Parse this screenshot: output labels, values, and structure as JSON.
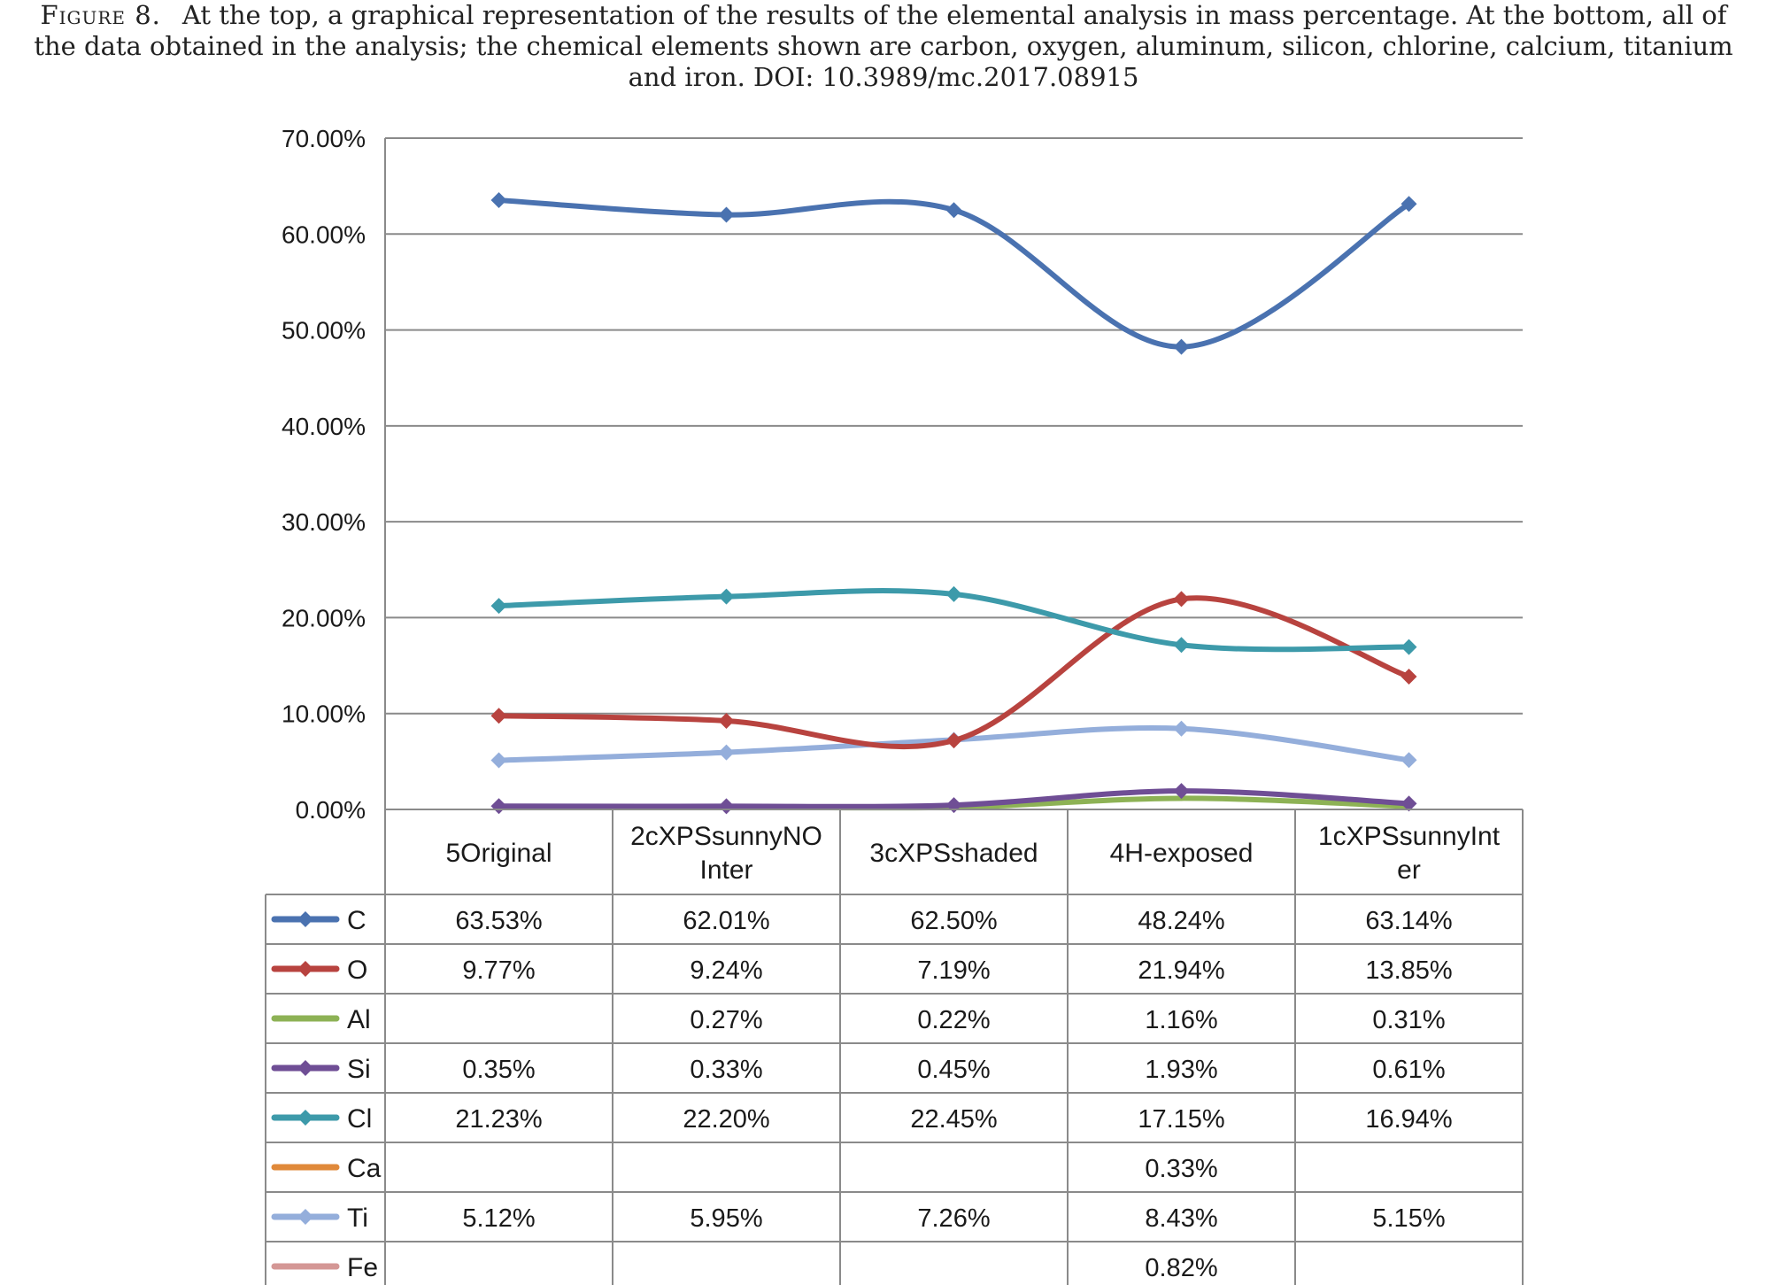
{
  "caption": {
    "label": "Figure 8.",
    "text": "At the top, a graphical representation of the results of the elemental analysis in mass percentage. At the bottom, all of the data obtained in the analysis; the chemical elements shown are carbon, oxygen, aluminum, silicon, chlorine, calcium, titanium and iron. DOI: 10.3989/mc.2017.08915"
  },
  "chart_data": {
    "type": "line",
    "smooth": true,
    "ylim": [
      0,
      70
    ],
    "yticks": [
      "0.00%",
      "10.00%",
      "20.00%",
      "30.00%",
      "40.00%",
      "50.00%",
      "60.00%",
      "70.00%"
    ],
    "categories": [
      "5Original",
      "2cXPSsunnyNOInter",
      "3cXPSshaded",
      "4H-exposed",
      "1cXPSsunnyInter"
    ],
    "category_lines": [
      [
        "5Original"
      ],
      [
        "2cXPSsunnyNO",
        "Inter"
      ],
      [
        "3cXPSshaded"
      ],
      [
        "4H-exposed"
      ],
      [
        "1cXPSsunnyInt",
        "er"
      ]
    ],
    "grid": true,
    "legend": "data-table",
    "series": [
      {
        "name": "C",
        "color": "#4a72b0",
        "marker": true,
        "values": [
          63.53,
          62.01,
          62.5,
          48.24,
          63.14
        ],
        "labels": [
          "63.53%",
          "62.01%",
          "62.50%",
          "48.24%",
          "63.14%"
        ]
      },
      {
        "name": "O",
        "color": "#b8433f",
        "marker": true,
        "values": [
          9.77,
          9.24,
          7.19,
          21.94,
          13.85
        ],
        "labels": [
          "9.77%",
          "9.24%",
          "7.19%",
          "21.94%",
          "13.85%"
        ]
      },
      {
        "name": "Al",
        "color": "#8db255",
        "marker": false,
        "values": [
          null,
          0.27,
          0.22,
          1.16,
          0.31
        ],
        "labels": [
          "",
          "0.27%",
          "0.22%",
          "1.16%",
          "0.31%"
        ]
      },
      {
        "name": "Si",
        "color": "#6f4e95",
        "marker": true,
        "values": [
          0.35,
          0.33,
          0.45,
          1.93,
          0.61
        ],
        "labels": [
          "0.35%",
          "0.33%",
          "0.45%",
          "1.93%",
          "0.61%"
        ]
      },
      {
        "name": "Cl",
        "color": "#3d9aaa",
        "marker": true,
        "values": [
          21.23,
          22.2,
          22.45,
          17.15,
          16.94
        ],
        "labels": [
          "21.23%",
          "22.20%",
          "22.45%",
          "17.15%",
          "16.94%"
        ]
      },
      {
        "name": "Ca",
        "color": "#e0893a",
        "marker": false,
        "values": [
          null,
          null,
          null,
          0.33,
          null
        ],
        "labels": [
          "",
          "",
          "",
          "0.33%",
          ""
        ]
      },
      {
        "name": "Ti",
        "color": "#94aedb",
        "marker": true,
        "values": [
          5.12,
          5.95,
          7.26,
          8.43,
          5.15
        ],
        "labels": [
          "5.12%",
          "5.95%",
          "7.26%",
          "8.43%",
          "5.15%"
        ]
      },
      {
        "name": "Fe",
        "color": "#d49795",
        "marker": false,
        "values": [
          null,
          null,
          null,
          0.82,
          null
        ],
        "labels": [
          "",
          "",
          "",
          "0.82%",
          ""
        ]
      }
    ]
  }
}
